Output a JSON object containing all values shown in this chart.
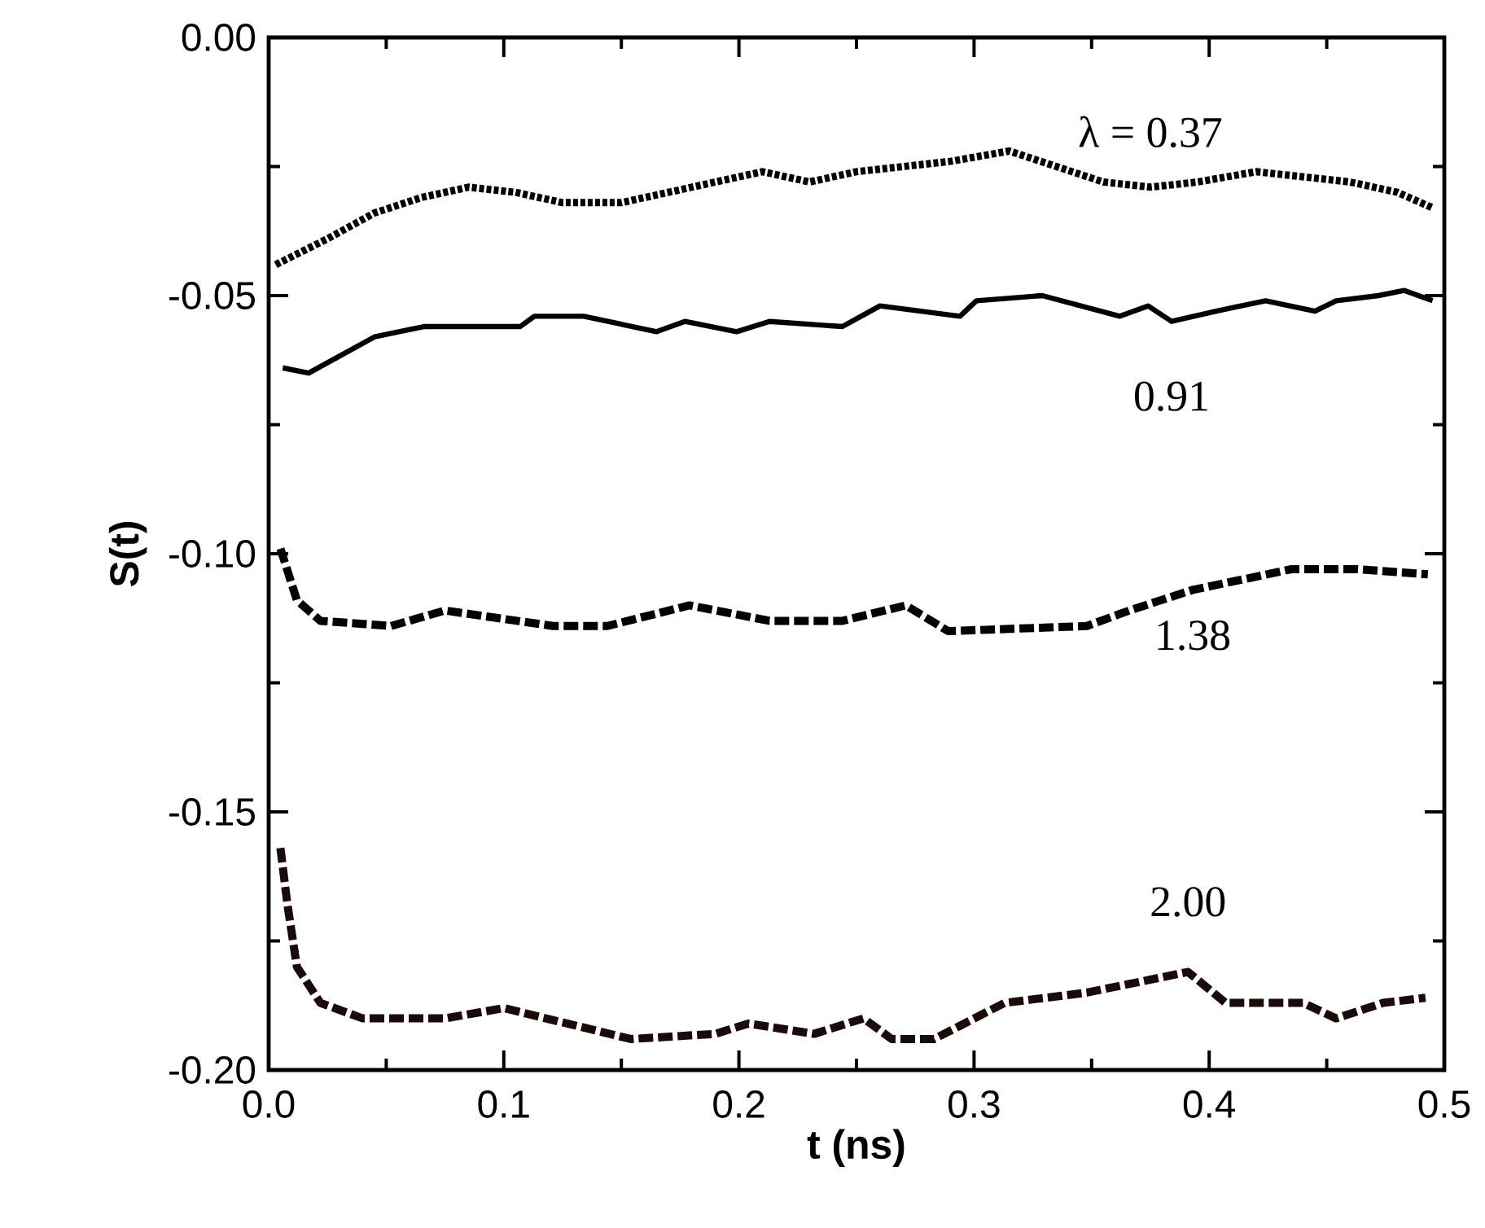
{
  "chart_data": {
    "type": "line",
    "xlabel": "t  (ns)",
    "ylabel": "S(t)",
    "xlim": [
      0,
      0.5
    ],
    "ylim": [
      -0.2,
      0
    ],
    "xticks": [
      {
        "value": 0,
        "label": "0.0"
      },
      {
        "value": 0.1,
        "label": "0.1"
      },
      {
        "value": 0.2,
        "label": "0.2"
      },
      {
        "value": 0.3,
        "label": "0.3"
      },
      {
        "value": 0.4,
        "label": "0.4"
      },
      {
        "value": 0.5,
        "label": "0.5"
      }
    ],
    "yticks": [
      {
        "value": -0.2,
        "label": "-0.20"
      },
      {
        "value": -0.15,
        "label": "-0.15"
      },
      {
        "value": -0.1,
        "label": "-0.10"
      },
      {
        "value": -0.05,
        "label": "-0.05"
      },
      {
        "value": 0,
        "label": "0.00"
      }
    ],
    "grid": false,
    "legend": false,
    "marker": "none",
    "series": [
      {
        "name": "λ = 0.37",
        "color": "#000000",
        "line_style": "dotted",
        "x": [
          0.003,
          0.025,
          0.045,
          0.065,
          0.085,
          0.105,
          0.125,
          0.15,
          0.17,
          0.19,
          0.21,
          0.23,
          0.25,
          0.27,
          0.29,
          0.315,
          0.335,
          0.355,
          0.375,
          0.395,
          0.42,
          0.44,
          0.46,
          0.48,
          0.495
        ],
        "values": [
          -0.044,
          -0.039,
          -0.034,
          -0.031,
          -0.029,
          -0.03,
          -0.032,
          -0.032,
          -0.03,
          -0.028,
          -0.026,
          -0.028,
          -0.026,
          -0.025,
          -0.024,
          -0.022,
          -0.025,
          -0.028,
          -0.029,
          -0.028,
          -0.026,
          -0.027,
          -0.028,
          -0.03,
          -0.033
        ]
      },
      {
        "name": "0.91",
        "color": "#000000",
        "line_style": "solid",
        "x": [
          0.006,
          0.017,
          0.045,
          0.066,
          0.107,
          0.113,
          0.134,
          0.165,
          0.177,
          0.199,
          0.213,
          0.244,
          0.26,
          0.294,
          0.301,
          0.329,
          0.362,
          0.374,
          0.384,
          0.403,
          0.424,
          0.445,
          0.454,
          0.472,
          0.483,
          0.495
        ],
        "values": [
          -0.064,
          -0.065,
          -0.058,
          -0.056,
          -0.056,
          -0.054,
          -0.054,
          -0.057,
          -0.055,
          -0.057,
          -0.055,
          -0.056,
          -0.052,
          -0.054,
          -0.051,
          -0.05,
          -0.054,
          -0.052,
          -0.055,
          -0.053,
          -0.051,
          -0.053,
          -0.051,
          -0.05,
          -0.049,
          -0.051
        ]
      },
      {
        "name": "1.38",
        "color": "#000000",
        "line_style": "dashed",
        "x": [
          0.005,
          0.012,
          0.022,
          0.052,
          0.075,
          0.121,
          0.144,
          0.179,
          0.213,
          0.244,
          0.271,
          0.289,
          0.348,
          0.366,
          0.393,
          0.435,
          0.463,
          0.493
        ],
        "values": [
          -0.099,
          -0.109,
          -0.113,
          -0.114,
          -0.111,
          -0.114,
          -0.114,
          -0.11,
          -0.113,
          -0.113,
          -0.11,
          -0.115,
          -0.114,
          -0.111,
          -0.107,
          -0.103,
          -0.103,
          -0.104
        ]
      },
      {
        "name": "2.00",
        "color": "#1a0a0a",
        "line_style": "dashed",
        "x": [
          0.005,
          0.008,
          0.012,
          0.022,
          0.04,
          0.075,
          0.1,
          0.154,
          0.19,
          0.204,
          0.232,
          0.253,
          0.265,
          0.283,
          0.313,
          0.348,
          0.391,
          0.407,
          0.44,
          0.454,
          0.474,
          0.492
        ],
        "values": [
          -0.157,
          -0.168,
          -0.18,
          -0.187,
          -0.19,
          -0.19,
          -0.188,
          -0.194,
          -0.193,
          -0.191,
          -0.193,
          -0.19,
          -0.194,
          -0.194,
          -0.187,
          -0.185,
          -0.181,
          -0.187,
          -0.187,
          -0.19,
          -0.187,
          -0.186
        ]
      }
    ]
  }
}
